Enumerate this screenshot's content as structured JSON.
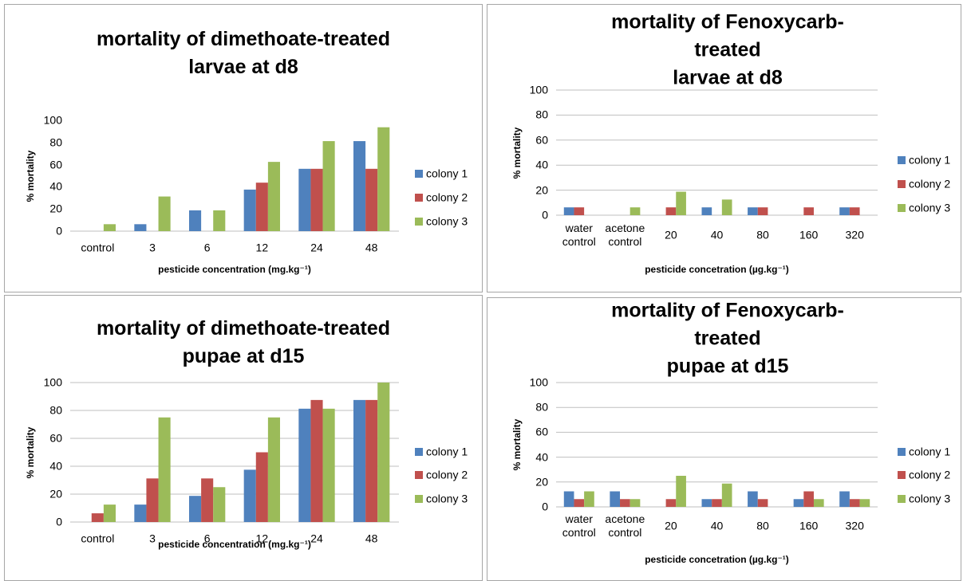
{
  "chart_data": [
    {
      "type": "bar",
      "title": "mortality of dimethoate-treated\nlarvae at d8",
      "x_label": "pesticide concentration (mg.kg⁻¹)",
      "y_label": "% mortality",
      "categories": [
        "control",
        "3",
        "6",
        "12",
        "24",
        "48"
      ],
      "series": [
        {
          "name": "colony 1",
          "color": "#4f81bd",
          "values": [
            0,
            6.25,
            18.75,
            37.5,
            56.25,
            81.25
          ]
        },
        {
          "name": "colony 2",
          "color": "#c0504d",
          "values": [
            0,
            0,
            0,
            43.75,
            56.25,
            56.25
          ]
        },
        {
          "name": "colony 3",
          "color": "#9bbb59",
          "values": [
            6.25,
            31.25,
            18.75,
            62.5,
            81.25,
            93.75
          ]
        }
      ],
      "ylim": [
        0,
        100
      ],
      "yticks": [
        0,
        20,
        40,
        60,
        80,
        100
      ],
      "grid": false,
      "legend": "right"
    },
    {
      "type": "bar",
      "title": "mortality of Fenoxycarb-treated\nlarvae at d8",
      "x_label": "pesticide concetration (µg.kg⁻¹)",
      "y_label": "% mortality",
      "categories": [
        "water\ncontrol",
        "acetone\ncontrol",
        "20",
        "40",
        "80",
        "160",
        "320"
      ],
      "series": [
        {
          "name": "colony 1",
          "color": "#4f81bd",
          "values": [
            6.25,
            0,
            0,
            6.25,
            6.25,
            0,
            6.25
          ]
        },
        {
          "name": "colony 2",
          "color": "#c0504d",
          "values": [
            6.25,
            0,
            6.25,
            0,
            6.25,
            6.25,
            6.25
          ]
        },
        {
          "name": "colony 3",
          "color": "#9bbb59",
          "values": [
            0,
            6.25,
            18.75,
            12.5,
            0,
            0,
            0
          ]
        }
      ],
      "ylim": [
        0,
        100
      ],
      "yticks": [
        0,
        20,
        40,
        60,
        80,
        100
      ],
      "grid": true,
      "legend": "right"
    },
    {
      "type": "bar",
      "title": "mortality of dimethoate-treated\npupae at d15",
      "x_label": "pesticide concentration (mg.kg⁻¹)",
      "y_label": "% mortality",
      "categories": [
        "control",
        "3",
        "6",
        "12",
        "24",
        "48"
      ],
      "series": [
        {
          "name": "colony 1",
          "color": "#4f81bd",
          "values": [
            0,
            12.5,
            18.75,
            37.5,
            81.25,
            87.5
          ]
        },
        {
          "name": "colony 2",
          "color": "#c0504d",
          "values": [
            6.25,
            31.25,
            31.25,
            50,
            87.5,
            87.5
          ]
        },
        {
          "name": "colony 3",
          "color": "#9bbb59",
          "values": [
            12.5,
            75,
            25,
            75,
            81.25,
            100
          ]
        }
      ],
      "ylim": [
        0,
        100
      ],
      "yticks": [
        0,
        20,
        40,
        60,
        80,
        100
      ],
      "grid": true,
      "legend": "right"
    },
    {
      "type": "bar",
      "title": "mortality of Fenoxycarb-treated\npupae at d15",
      "x_label": "pesticide concetration (µg.kg⁻¹)",
      "y_label": "% mortality",
      "categories": [
        "water\ncontrol",
        "acetone\ncontrol",
        "20",
        "40",
        "80",
        "160",
        "320"
      ],
      "series": [
        {
          "name": "colony 1",
          "color": "#4f81bd",
          "values": [
            12.5,
            12.5,
            0,
            6.25,
            12.5,
            6.25,
            12.5
          ]
        },
        {
          "name": "colony 2",
          "color": "#c0504d",
          "values": [
            6.25,
            6.25,
            6.25,
            6.25,
            6.25,
            12.5,
            6.25
          ]
        },
        {
          "name": "colony 3",
          "color": "#9bbb59",
          "values": [
            12.5,
            6.25,
            25,
            18.75,
            0,
            6.25,
            6.25
          ]
        }
      ],
      "ylim": [
        0,
        100
      ],
      "yticks": [
        0,
        20,
        40,
        60,
        80,
        100
      ],
      "grid": true,
      "legend": "right"
    }
  ]
}
